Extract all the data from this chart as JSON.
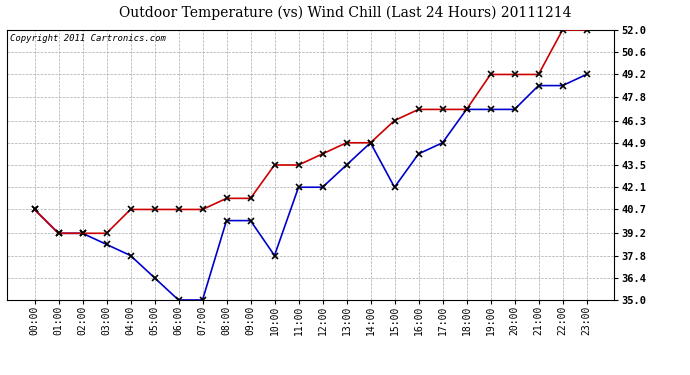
{
  "title": "Outdoor Temperature (vs) Wind Chill (Last 24 Hours) 20111214",
  "copyright": "Copyright 2011 Cartronics.com",
  "x_labels": [
    "00:00",
    "01:00",
    "02:00",
    "03:00",
    "04:00",
    "05:00",
    "06:00",
    "07:00",
    "08:00",
    "09:00",
    "10:00",
    "11:00",
    "12:00",
    "13:00",
    "14:00",
    "15:00",
    "16:00",
    "17:00",
    "18:00",
    "19:00",
    "20:00",
    "21:00",
    "22:00",
    "23:00"
  ],
  "temp_data": [
    40.7,
    39.2,
    39.2,
    39.2,
    40.7,
    40.7,
    40.7,
    40.7,
    41.4,
    41.4,
    43.5,
    43.5,
    44.2,
    44.9,
    44.9,
    46.3,
    47.0,
    47.0,
    47.0,
    49.2,
    49.2,
    49.2,
    52.0,
    52.0
  ],
  "wind_chill_data": [
    40.7,
    39.2,
    39.2,
    38.5,
    37.8,
    36.4,
    35.0,
    35.0,
    40.0,
    40.0,
    37.8,
    42.1,
    42.1,
    43.5,
    44.9,
    42.1,
    44.2,
    44.9,
    47.0,
    47.0,
    47.0,
    48.5,
    48.5,
    49.2
  ],
  "temp_color": "#cc0000",
  "wind_chill_color": "#0000cc",
  "ylim_min": 35.0,
  "ylim_max": 52.0,
  "yticks": [
    35.0,
    36.4,
    37.8,
    39.2,
    40.7,
    42.1,
    43.5,
    44.9,
    46.3,
    47.8,
    49.2,
    50.6,
    52.0
  ],
  "background_color": "#ffffff",
  "grid_color": "#aaaaaa",
  "title_fontsize": 10,
  "copyright_fontsize": 6.5,
  "tick_fontsize": 7,
  "marker": "x"
}
